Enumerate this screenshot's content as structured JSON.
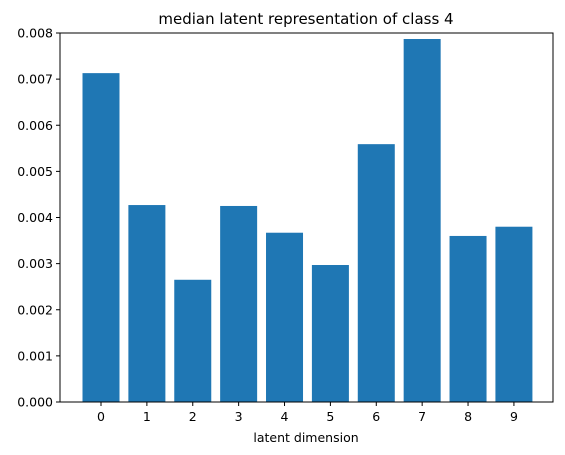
{
  "chart_data": {
    "type": "bar",
    "title": "median latent representation of class 4",
    "xlabel": "latent dimension",
    "ylabel": "",
    "categories": [
      "0",
      "1",
      "2",
      "3",
      "4",
      "5",
      "6",
      "7",
      "8",
      "9"
    ],
    "values": [
      0.00713,
      0.00427,
      0.00265,
      0.00425,
      0.00367,
      0.00297,
      0.00559,
      0.00787,
      0.0036,
      0.0038
    ],
    "ylim": [
      0,
      0.008
    ],
    "yticks": [
      "0.000",
      "0.001",
      "0.002",
      "0.003",
      "0.004",
      "0.005",
      "0.006",
      "0.007",
      "0.008"
    ],
    "bar_color": "#1f77b4",
    "grid": false
  }
}
